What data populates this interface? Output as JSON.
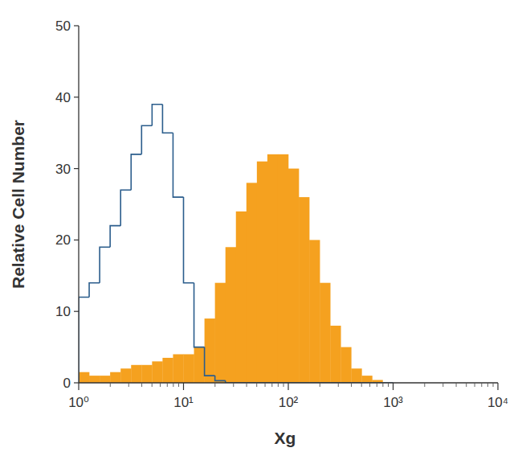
{
  "chart_data": {
    "type": "histogram",
    "x_label": "Xg",
    "y_label": "Relative Cell Number",
    "log": "x",
    "xlim": [
      1,
      10000
    ],
    "ylim": [
      0,
      50
    ],
    "xticks": [
      {
        "value": 1,
        "label": "10⁰"
      },
      {
        "value": 10,
        "label": "10¹"
      },
      {
        "value": 100,
        "label": "10²"
      },
      {
        "value": 1000,
        "label": "10³"
      },
      {
        "value": 10000,
        "label": "10⁴"
      }
    ],
    "yticks": [
      0,
      10,
      20,
      30,
      40,
      50
    ],
    "bins": [
      1,
      1.259,
      1.585,
      1.995,
      2.512,
      3.162,
      3.981,
      5.012,
      6.31,
      7.943,
      10,
      12.59,
      15.85,
      19.95,
      25.12,
      31.62,
      39.81,
      50.12,
      63.1,
      79.43,
      100,
      125.9,
      158.5,
      199.5,
      251.2,
      316.2,
      398.1,
      501.2,
      631,
      794.3,
      1000
    ],
    "series": [
      {
        "type": "bar",
        "color": "#f5a11f",
        "values": [
          1.5,
          1,
          1,
          1.5,
          2,
          2.5,
          2.5,
          3,
          3.5,
          4,
          4,
          5,
          9,
          14,
          19,
          24,
          28,
          31,
          32,
          32,
          30,
          26,
          20,
          14,
          8,
          5,
          2,
          1,
          0.4,
          0
        ]
      },
      {
        "type": "step",
        "color": "#2b5d8c",
        "values": [
          12,
          14,
          19,
          22,
          27,
          32,
          36,
          39,
          35,
          26,
          14,
          5,
          1,
          0.3,
          0,
          0,
          0,
          0,
          0,
          0,
          0,
          0,
          0,
          0,
          0,
          0,
          0,
          0,
          0,
          0
        ]
      }
    ]
  }
}
